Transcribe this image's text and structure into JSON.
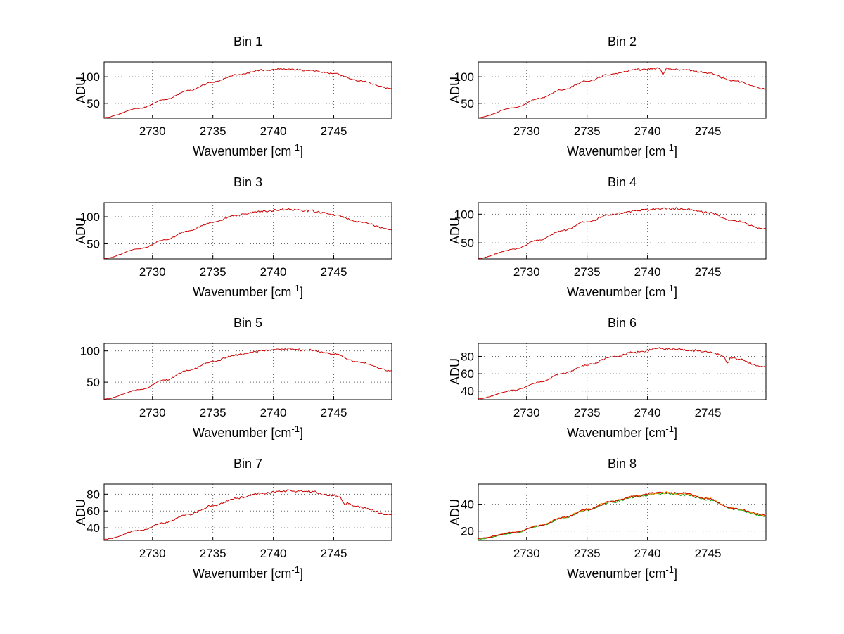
{
  "figure": {
    "background": "#ffffff",
    "rows": 4,
    "cols": 2
  },
  "chart_data": [
    {
      "type": "line",
      "title": "Bin 1",
      "ylabel": "ADU",
      "xlabel": {
        "prefix": "Wavenumber [cm",
        "sup": "-1",
        "suffix": "]"
      },
      "xlim": [
        2726,
        2749.8
      ],
      "ylim": [
        22,
        128
      ],
      "xticks": [
        2730,
        2735,
        2740,
        2745
      ],
      "yticks": [
        50,
        100
      ],
      "grid": true,
      "x": [
        2726,
        2729,
        2731,
        2733,
        2735,
        2737,
        2739,
        2741,
        2743,
        2745,
        2747,
        2749.8
      ],
      "series": [
        {
          "name": "bin1",
          "color": "#cc0000",
          "noise": 1.9,
          "seed": 1,
          "spikes": [],
          "y": [
            23,
            41,
            57,
            74,
            90,
            104,
            112,
            115,
            112,
            106,
            93,
            78
          ]
        }
      ]
    },
    {
      "type": "line",
      "title": "Bin 2",
      "ylabel": "ADU",
      "xlabel": {
        "prefix": "Wavenumber [cm",
        "sup": "-1",
        "suffix": "]"
      },
      "xlim": [
        2726,
        2749.8
      ],
      "ylim": [
        22,
        128
      ],
      "xticks": [
        2730,
        2735,
        2740,
        2745
      ],
      "yticks": [
        50,
        100
      ],
      "grid": true,
      "x": [
        2726,
        2729,
        2731,
        2733,
        2735,
        2737,
        2739,
        2741,
        2743,
        2745,
        2747,
        2749.8
      ],
      "series": [
        {
          "name": "bin2",
          "color": "#cc0000",
          "noise": 2.0,
          "seed": 2,
          "spikes": [
            {
              "x": 2741.3,
              "dy": -13
            }
          ],
          "y": [
            23,
            42,
            59,
            76,
            92,
            105,
            113,
            116,
            113,
            107,
            93,
            77
          ]
        }
      ]
    },
    {
      "type": "line",
      "title": "Bin 3",
      "ylabel": "ADU",
      "xlabel": {
        "prefix": "Wavenumber [cm",
        "sup": "-1",
        "suffix": "]"
      },
      "xlim": [
        2726,
        2749.8
      ],
      "ylim": [
        22,
        126
      ],
      "xticks": [
        2730,
        2735,
        2740,
        2745
      ],
      "yticks": [
        50,
        100
      ],
      "grid": true,
      "x": [
        2726,
        2729,
        2731,
        2733,
        2735,
        2737,
        2739,
        2741,
        2743,
        2745,
        2747,
        2749.8
      ],
      "series": [
        {
          "name": "bin3",
          "color": "#cc0000",
          "noise": 2.2,
          "seed": 3,
          "spikes": [],
          "y": [
            23,
            41,
            57,
            74,
            90,
            103,
            110,
            113,
            111,
            104,
            91,
            76
          ]
        }
      ]
    },
    {
      "type": "line",
      "title": "Bin 4",
      "ylabel": "ADU",
      "xlabel": {
        "prefix": "Wavenumber [cm",
        "sup": "-1",
        "suffix": "]"
      },
      "xlim": [
        2726,
        2749.8
      ],
      "ylim": [
        22,
        120
      ],
      "xticks": [
        2730,
        2735,
        2740,
        2745
      ],
      "yticks": [
        50,
        100
      ],
      "grid": true,
      "x": [
        2726,
        2729,
        2731,
        2733,
        2735,
        2737,
        2739,
        2741,
        2743,
        2745,
        2747,
        2749.8
      ],
      "series": [
        {
          "name": "bin4",
          "color": "#cc0000",
          "noise": 2.2,
          "seed": 4,
          "spikes": [],
          "y": [
            23,
            39,
            55,
            72,
            87,
            99,
            106,
            110,
            109,
            103,
            89,
            74
          ]
        }
      ]
    },
    {
      "type": "line",
      "title": "Bin 5",
      "ylabel": "",
      "xlabel": {
        "prefix": "Wavenumber [cm",
        "sup": "-1",
        "suffix": "]"
      },
      "xlim": [
        2726,
        2749.8
      ],
      "ylim": [
        22,
        112
      ],
      "xticks": [
        2730,
        2735,
        2740,
        2745
      ],
      "yticks": [
        50,
        100
      ],
      "grid": true,
      "x": [
        2726,
        2729,
        2731,
        2733,
        2735,
        2737,
        2739,
        2741,
        2743,
        2745,
        2747,
        2749.8
      ],
      "series": [
        {
          "name": "bin5",
          "color": "#cc0000",
          "noise": 1.7,
          "seed": 5,
          "spikes": [],
          "y": [
            23,
            38,
            53,
            69,
            83,
            94,
            100,
            103,
            101,
            95,
            82,
            68
          ]
        }
      ]
    },
    {
      "type": "line",
      "title": "Bin 6",
      "ylabel": "ADU",
      "xlabel": {
        "prefix": "Wavenumber [cm",
        "sup": "-1",
        "suffix": "]"
      },
      "xlim": [
        2726,
        2749.8
      ],
      "ylim": [
        30,
        95
      ],
      "xticks": [
        2730,
        2735,
        2740,
        2745
      ],
      "yticks": [
        40,
        60,
        80
      ],
      "grid": true,
      "x": [
        2726,
        2729,
        2731,
        2733,
        2735,
        2737,
        2739,
        2741,
        2743,
        2745,
        2747,
        2749.8
      ],
      "series": [
        {
          "name": "bin6",
          "color": "#cc0000",
          "noise": 1.6,
          "seed": 6,
          "spikes": [
            {
              "x": 2746.6,
              "dy": -8
            }
          ],
          "y": [
            31,
            41,
            50,
            60,
            70,
            79,
            85,
            89,
            88,
            85,
            78,
            68
          ]
        }
      ]
    },
    {
      "type": "line",
      "title": "Bin 7",
      "ylabel": "ADU",
      "xlabel": {
        "prefix": "Wavenumber [cm",
        "sup": "-1",
        "suffix": "]"
      },
      "xlim": [
        2726,
        2749.8
      ],
      "ylim": [
        25,
        92
      ],
      "xticks": [
        2730,
        2735,
        2740,
        2745
      ],
      "yticks": [
        40,
        60,
        80
      ],
      "grid": true,
      "x": [
        2726,
        2729,
        2731,
        2733,
        2735,
        2737,
        2739,
        2741,
        2743,
        2745,
        2747,
        2749.8
      ],
      "series": [
        {
          "name": "bin7",
          "color": "#cc0000",
          "noise": 1.8,
          "seed": 7,
          "spikes": [
            {
              "x": 2745.9,
              "dy": -7
            }
          ],
          "y": [
            26,
            37,
            46,
            56,
            66,
            75,
            81,
            84,
            83,
            78,
            65,
            55
          ]
        }
      ]
    },
    {
      "type": "line",
      "title": "Bin 8",
      "ylabel": "ADU",
      "xlabel": {
        "prefix": "Wavenumber [cm",
        "sup": "-1",
        "suffix": "]"
      },
      "xlim": [
        2726,
        2749.8
      ],
      "ylim": [
        13,
        55
      ],
      "xticks": [
        2730,
        2735,
        2740,
        2745
      ],
      "yticks": [
        20,
        40
      ],
      "grid": true,
      "x": [
        2726,
        2729,
        2731,
        2733,
        2735,
        2737,
        2739,
        2741,
        2743,
        2745,
        2747,
        2749.8
      ],
      "series": [
        {
          "name": "bin8-green",
          "color": "#009900",
          "noise": 1.0,
          "seed": 9,
          "spikes": [],
          "y": [
            14,
            18.5,
            23.5,
            29.5,
            35.5,
            41.5,
            45.5,
            48.2,
            47.2,
            43.5,
            36.5,
            31.3
          ]
        },
        {
          "name": "bin8-orange",
          "color": "#ff9900",
          "noise": 1.0,
          "seed": 10,
          "spikes": [],
          "y": [
            14.3,
            19,
            24,
            30,
            36,
            42,
            46,
            48.8,
            47.8,
            44,
            37,
            31.8
          ]
        },
        {
          "name": "bin8-red",
          "color": "#cc0000",
          "noise": 1.0,
          "seed": 8,
          "spikes": [],
          "y": [
            14.5,
            19,
            24,
            30,
            36,
            42,
            46.2,
            49,
            48,
            44.2,
            37.2,
            32
          ]
        }
      ]
    }
  ]
}
